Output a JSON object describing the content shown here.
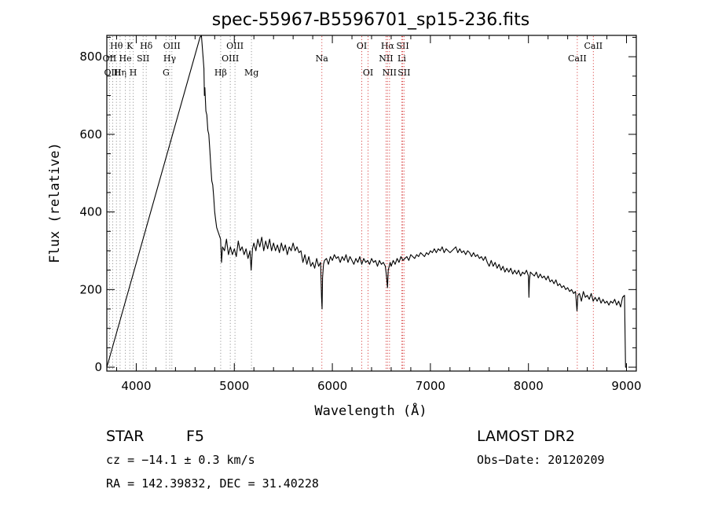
{
  "chart_data": {
    "type": "line",
    "title": "spec-55967-B5596701_sp15-236.fits",
    "xlabel": "Wavelength (Å)",
    "ylabel": "Flux (relative)",
    "xlim": [
      3700,
      9100
    ],
    "ylim": [
      -10,
      855
    ],
    "xticks": [
      4000,
      5000,
      6000,
      7000,
      8000,
      9000
    ],
    "yticks": [
      0,
      200,
      400,
      600,
      800
    ],
    "grid": false,
    "series": [
      {
        "points": [
          [
            3700,
            0
          ],
          [
            4650,
            850
          ],
          [
            4665,
            855
          ],
          [
            4690,
            770
          ],
          [
            4695,
            700
          ],
          [
            4700,
            720
          ],
          [
            4710,
            660
          ],
          [
            4720,
            650
          ],
          [
            4730,
            610
          ],
          [
            4740,
            600
          ],
          [
            4750,
            560
          ],
          [
            4760,
            520
          ],
          [
            4770,
            480
          ],
          [
            4780,
            470
          ],
          [
            4790,
            440
          ],
          [
            4800,
            400
          ],
          [
            4810,
            380
          ],
          [
            4820,
            360
          ],
          [
            4840,
            345
          ],
          [
            4860,
            330
          ],
          [
            4870,
            270
          ],
          [
            4880,
            310
          ],
          [
            4900,
            300
          ],
          [
            4920,
            330
          ],
          [
            4940,
            290
          ],
          [
            4960,
            310
          ],
          [
            4980,
            290
          ],
          [
            5000,
            305
          ],
          [
            5020,
            285
          ],
          [
            5040,
            325
          ],
          [
            5060,
            300
          ],
          [
            5080,
            310
          ],
          [
            5100,
            290
          ],
          [
            5120,
            305
          ],
          [
            5140,
            280
          ],
          [
            5160,
            300
          ],
          [
            5172,
            250
          ],
          [
            5185,
            305
          ],
          [
            5200,
            320
          ],
          [
            5220,
            300
          ],
          [
            5240,
            330
          ],
          [
            5260,
            310
          ],
          [
            5280,
            335
          ],
          [
            5300,
            300
          ],
          [
            5320,
            325
          ],
          [
            5340,
            305
          ],
          [
            5360,
            330
          ],
          [
            5380,
            300
          ],
          [
            5400,
            320
          ],
          [
            5420,
            300
          ],
          [
            5440,
            315
          ],
          [
            5460,
            295
          ],
          [
            5480,
            320
          ],
          [
            5500,
            300
          ],
          [
            5520,
            315
          ],
          [
            5540,
            290
          ],
          [
            5560,
            310
          ],
          [
            5580,
            300
          ],
          [
            5600,
            320
          ],
          [
            5620,
            300
          ],
          [
            5640,
            310
          ],
          [
            5660,
            295
          ],
          [
            5680,
            300
          ],
          [
            5700,
            270
          ],
          [
            5720,
            290
          ],
          [
            5740,
            265
          ],
          [
            5760,
            285
          ],
          [
            5780,
            260
          ],
          [
            5800,
            270
          ],
          [
            5820,
            255
          ],
          [
            5840,
            280
          ],
          [
            5860,
            260
          ],
          [
            5880,
            270
          ],
          [
            5890,
            180
          ],
          [
            5895,
            150
          ],
          [
            5900,
            230
          ],
          [
            5910,
            265
          ],
          [
            5920,
            275
          ],
          [
            5940,
            280
          ],
          [
            5960,
            265
          ],
          [
            5980,
            285
          ],
          [
            6000,
            275
          ],
          [
            6020,
            290
          ],
          [
            6040,
            280
          ],
          [
            6060,
            285
          ],
          [
            6080,
            270
          ],
          [
            6100,
            285
          ],
          [
            6120,
            275
          ],
          [
            6140,
            290
          ],
          [
            6160,
            270
          ],
          [
            6180,
            285
          ],
          [
            6200,
            275
          ],
          [
            6220,
            265
          ],
          [
            6240,
            280
          ],
          [
            6260,
            270
          ],
          [
            6280,
            285
          ],
          [
            6300,
            265
          ],
          [
            6320,
            280
          ],
          [
            6340,
            270
          ],
          [
            6360,
            275
          ],
          [
            6380,
            265
          ],
          [
            6400,
            280
          ],
          [
            6420,
            270
          ],
          [
            6440,
            275
          ],
          [
            6460,
            260
          ],
          [
            6480,
            275
          ],
          [
            6500,
            265
          ],
          [
            6520,
            270
          ],
          [
            6540,
            260
          ],
          [
            6550,
            240
          ],
          [
            6563,
            205
          ],
          [
            6570,
            250
          ],
          [
            6590,
            270
          ],
          [
            6600,
            260
          ],
          [
            6620,
            275
          ],
          [
            6640,
            265
          ],
          [
            6660,
            280
          ],
          [
            6680,
            270
          ],
          [
            6700,
            285
          ],
          [
            6720,
            275
          ],
          [
            6740,
            280
          ],
          [
            6760,
            285
          ],
          [
            6780,
            275
          ],
          [
            6800,
            290
          ],
          [
            6820,
            285
          ],
          [
            6840,
            280
          ],
          [
            6860,
            290
          ],
          [
            6880,
            285
          ],
          [
            6900,
            295
          ],
          [
            6920,
            290
          ],
          [
            6940,
            285
          ],
          [
            6960,
            295
          ],
          [
            6980,
            290
          ],
          [
            7000,
            300
          ],
          [
            7020,
            295
          ],
          [
            7040,
            305
          ],
          [
            7060,
            295
          ],
          [
            7080,
            305
          ],
          [
            7100,
            300
          ],
          [
            7120,
            310
          ],
          [
            7140,
            295
          ],
          [
            7160,
            305
          ],
          [
            7180,
            300
          ],
          [
            7200,
            295
          ],
          [
            7220,
            300
          ],
          [
            7240,
            305
          ],
          [
            7260,
            310
          ],
          [
            7280,
            295
          ],
          [
            7300,
            305
          ],
          [
            7320,
            295
          ],
          [
            7340,
            300
          ],
          [
            7360,
            290
          ],
          [
            7380,
            300
          ],
          [
            7400,
            295
          ],
          [
            7420,
            285
          ],
          [
            7440,
            295
          ],
          [
            7460,
            285
          ],
          [
            7480,
            290
          ],
          [
            7500,
            280
          ],
          [
            7520,
            285
          ],
          [
            7540,
            275
          ],
          [
            7560,
            285
          ],
          [
            7580,
            270
          ],
          [
            7600,
            260
          ],
          [
            7620,
            275
          ],
          [
            7640,
            260
          ],
          [
            7660,
            270
          ],
          [
            7680,
            255
          ],
          [
            7700,
            265
          ],
          [
            7720,
            250
          ],
          [
            7740,
            260
          ],
          [
            7760,
            245
          ],
          [
            7780,
            255
          ],
          [
            7800,
            245
          ],
          [
            7820,
            255
          ],
          [
            7840,
            240
          ],
          [
            7860,
            250
          ],
          [
            7880,
            240
          ],
          [
            7900,
            250
          ],
          [
            7920,
            235
          ],
          [
            7940,
            245
          ],
          [
            7960,
            240
          ],
          [
            7980,
            250
          ],
          [
            8000,
            235
          ],
          [
            8005,
            180
          ],
          [
            8010,
            225
          ],
          [
            8020,
            245
          ],
          [
            8040,
            240
          ],
          [
            8060,
            235
          ],
          [
            8080,
            245
          ],
          [
            8100,
            230
          ],
          [
            8120,
            240
          ],
          [
            8140,
            230
          ],
          [
            8160,
            235
          ],
          [
            8180,
            225
          ],
          [
            8200,
            235
          ],
          [
            8220,
            220
          ],
          [
            8240,
            225
          ],
          [
            8260,
            215
          ],
          [
            8280,
            225
          ],
          [
            8300,
            210
          ],
          [
            8320,
            215
          ],
          [
            8340,
            205
          ],
          [
            8360,
            210
          ],
          [
            8380,
            200
          ],
          [
            8400,
            205
          ],
          [
            8420,
            195
          ],
          [
            8440,
            200
          ],
          [
            8460,
            190
          ],
          [
            8480,
            195
          ],
          [
            8495,
            145
          ],
          [
            8505,
            185
          ],
          [
            8520,
            190
          ],
          [
            8540,
            170
          ],
          [
            8560,
            195
          ],
          [
            8580,
            180
          ],
          [
            8600,
            185
          ],
          [
            8620,
            175
          ],
          [
            8640,
            190
          ],
          [
            8660,
            170
          ],
          [
            8680,
            180
          ],
          [
            8700,
            170
          ],
          [
            8720,
            180
          ],
          [
            8740,
            165
          ],
          [
            8760,
            175
          ],
          [
            8780,
            165
          ],
          [
            8800,
            170
          ],
          [
            8820,
            160
          ],
          [
            8840,
            170
          ],
          [
            8860,
            165
          ],
          [
            8880,
            175
          ],
          [
            8900,
            160
          ],
          [
            8920,
            170
          ],
          [
            8940,
            155
          ],
          [
            8960,
            180
          ],
          [
            8980,
            185
          ],
          [
            8990,
            0
          ],
          [
            9000,
            0
          ]
        ]
      }
    ],
    "line_markers": [
      {
        "label": "Hθ",
        "x": 3798,
        "row": 1
      },
      {
        "label": "OII",
        "x": 3727,
        "row": 2
      },
      {
        "label": "Hη",
        "x": 3835,
        "row": 3
      },
      {
        "label": "OIII",
        "x": 3760,
        "row": 3
      },
      {
        "label": "He",
        "x": 3889,
        "row": 2
      },
      {
        "label": "K",
        "x": 3934,
        "row": 1
      },
      {
        "label": "H",
        "x": 3969,
        "row": 3
      },
      {
        "label": "SII",
        "x": 4070,
        "row": 2
      },
      {
        "label": "Hδ",
        "x": 4102,
        "row": 1
      },
      {
        "label": "OIII",
        "x": 4363,
        "row": 1
      },
      {
        "label": "Hγ",
        "x": 4341,
        "row": 2
      },
      {
        "label": "G",
        "x": 4304,
        "row": 3
      },
      {
        "label": "OIII",
        "x": 5007,
        "row": 1
      },
      {
        "label": "OIII",
        "x": 4959,
        "row": 2
      },
      {
        "label": "Hβ",
        "x": 4861,
        "row": 3
      },
      {
        "label": "Mg",
        "x": 5175,
        "row": 3
      },
      {
        "label": "Na",
        "x": 5893,
        "row": 2
      },
      {
        "label": "OI",
        "x": 6300,
        "row": 1
      },
      {
        "label": "OI",
        "x": 6364,
        "row": 3
      },
      {
        "label": "Hα",
        "x": 6563,
        "row": 1
      },
      {
        "label": "NII",
        "x": 6548,
        "row": 2
      },
      {
        "label": "NII",
        "x": 6583,
        "row": 3
      },
      {
        "label": "SII",
        "x": 6717,
        "row": 1
      },
      {
        "label": "Li",
        "x": 6708,
        "row": 2
      },
      {
        "label": "SII",
        "x": 6731,
        "row": 3
      },
      {
        "label": "CaII",
        "x": 8498,
        "row": 2
      },
      {
        "label": "CaII",
        "x": 8662,
        "row": 1
      }
    ]
  },
  "info": {
    "object_class": "STAR",
    "subclass": "F5",
    "survey": "LAMOST DR2",
    "cz": "cz = −14.1 ± 0.3 km/s",
    "obs_date": "Obs−Date: 20120209",
    "coords": "RA = 142.39832, DEC =  31.40228"
  },
  "colors": {
    "spectrum": "#000000",
    "marker_line": "#d94a4a",
    "marker_dot": "#9a9a9a"
  }
}
